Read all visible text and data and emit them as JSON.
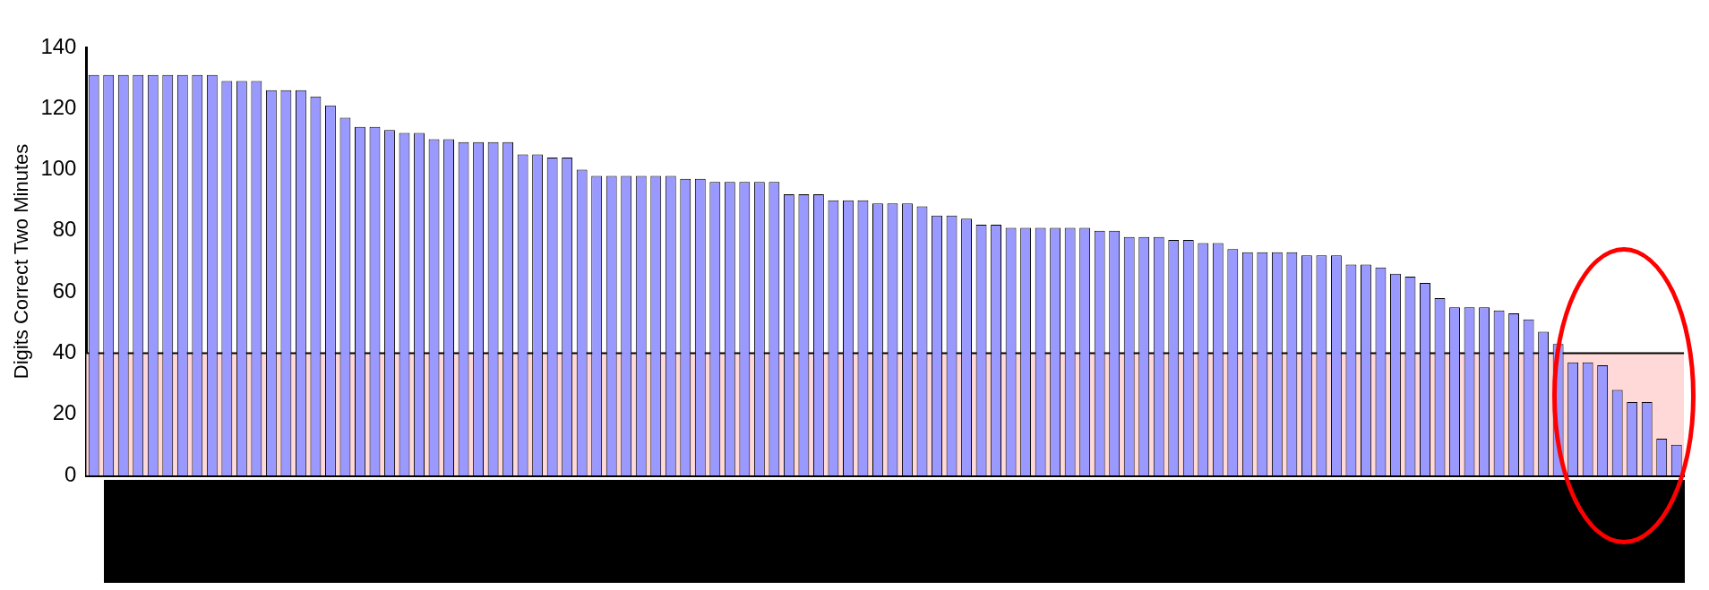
{
  "chart_data": {
    "type": "bar",
    "ylabel": "Digits Correct Two Minutes",
    "categories": [
      null,
      null,
      null,
      null,
      null,
      null,
      null,
      null,
      null,
      null,
      null,
      null,
      null,
      null,
      null,
      null,
      null,
      null,
      null,
      null,
      null,
      null,
      null,
      null,
      null,
      null,
      null,
      null,
      null,
      null,
      null,
      null,
      null,
      null,
      null,
      null,
      null,
      null,
      null,
      null,
      null,
      null,
      null,
      null,
      null,
      null,
      null,
      null,
      null,
      null,
      null,
      null,
      null,
      null,
      null,
      null,
      null,
      null,
      null,
      null,
      null,
      null,
      null,
      null,
      null,
      null,
      null,
      null,
      null,
      null,
      null,
      null,
      null,
      null,
      null,
      null,
      null,
      null,
      null,
      null,
      null,
      null,
      null,
      null,
      null,
      null,
      null,
      null,
      null,
      null,
      null,
      null,
      null,
      null,
      null,
      null,
      null,
      null,
      null,
      null,
      null,
      null,
      null,
      null,
      null,
      null,
      null,
      null
    ],
    "values": [
      131,
      131,
      131,
      131,
      131,
      131,
      131,
      131,
      131,
      129,
      129,
      129,
      126,
      126,
      126,
      124,
      121,
      117,
      114,
      114,
      113,
      112,
      112,
      110,
      110,
      109,
      109,
      109,
      109,
      105,
      105,
      104,
      104,
      100,
      98,
      98,
      98,
      98,
      98,
      98,
      97,
      97,
      96,
      96,
      96,
      96,
      96,
      92,
      92,
      92,
      90,
      90,
      90,
      89,
      89,
      89,
      88,
      85,
      85,
      84,
      82,
      82,
      81,
      81,
      81,
      81,
      81,
      81,
      80,
      80,
      78,
      78,
      78,
      77,
      77,
      76,
      76,
      74,
      73,
      73,
      73,
      73,
      72,
      72,
      72,
      69,
      69,
      68,
      66,
      65,
      63,
      58,
      55,
      55,
      55,
      54,
      53,
      51,
      47,
      43,
      37,
      37,
      36,
      28,
      24,
      24,
      12,
      10
    ],
    "color": "#9999ff",
    "ylim": [
      0,
      140
    ],
    "yticks": [
      0,
      20,
      40,
      60,
      80,
      100,
      120,
      140
    ],
    "bands": [
      {
        "axis": "y",
        "from": 0,
        "to": 40,
        "color": "#ffd8d8"
      }
    ]
  }
}
